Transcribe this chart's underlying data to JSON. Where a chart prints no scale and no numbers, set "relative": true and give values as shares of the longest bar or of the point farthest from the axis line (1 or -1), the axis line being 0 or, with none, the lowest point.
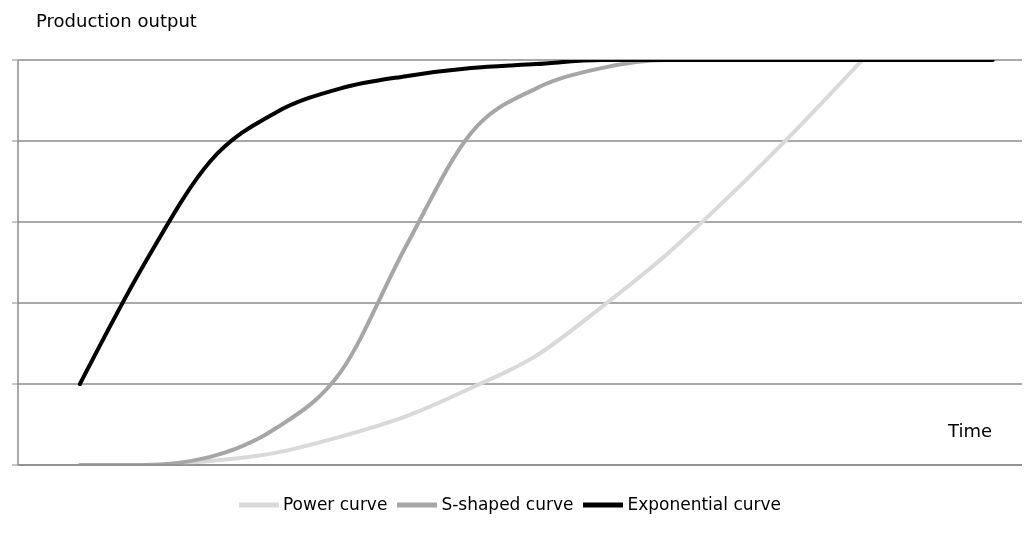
{
  "chart_data": {
    "type": "line",
    "relative": true,
    "ylabel": "Production output",
    "xlabel": "Time",
    "categories": [
      null,
      null,
      null,
      null,
      null,
      null,
      null,
      null,
      null,
      null,
      null,
      null,
      null,
      null,
      null
    ],
    "grid": "y",
    "legend": "bottom",
    "marker": "none",
    "line_style": "solid",
    "series": [
      {
        "name": "Power curve",
        "color": "#d9d9d9",
        "values": [
          0,
          0,
          0.01,
          0.03,
          0.07,
          0.12,
          0.19,
          0.27,
          0.39,
          0.52,
          0.67,
          0.83,
          1,
          null,
          null
        ]
      },
      {
        "name": "S-shaped curve",
        "color": "#a6a6a6",
        "values": [
          0,
          0,
          0.02,
          0.09,
          0.23,
          0.54,
          0.82,
          0.93,
          0.98,
          1,
          1,
          1,
          1,
          1,
          1
        ]
      },
      {
        "name": "Exponential curve",
        "color": "#000000",
        "values": [
          0.2,
          0.5,
          0.75,
          0.87,
          0.93,
          0.96,
          0.98,
          0.99,
          1,
          1,
          1,
          1,
          1,
          1,
          1
        ]
      }
    ]
  }
}
